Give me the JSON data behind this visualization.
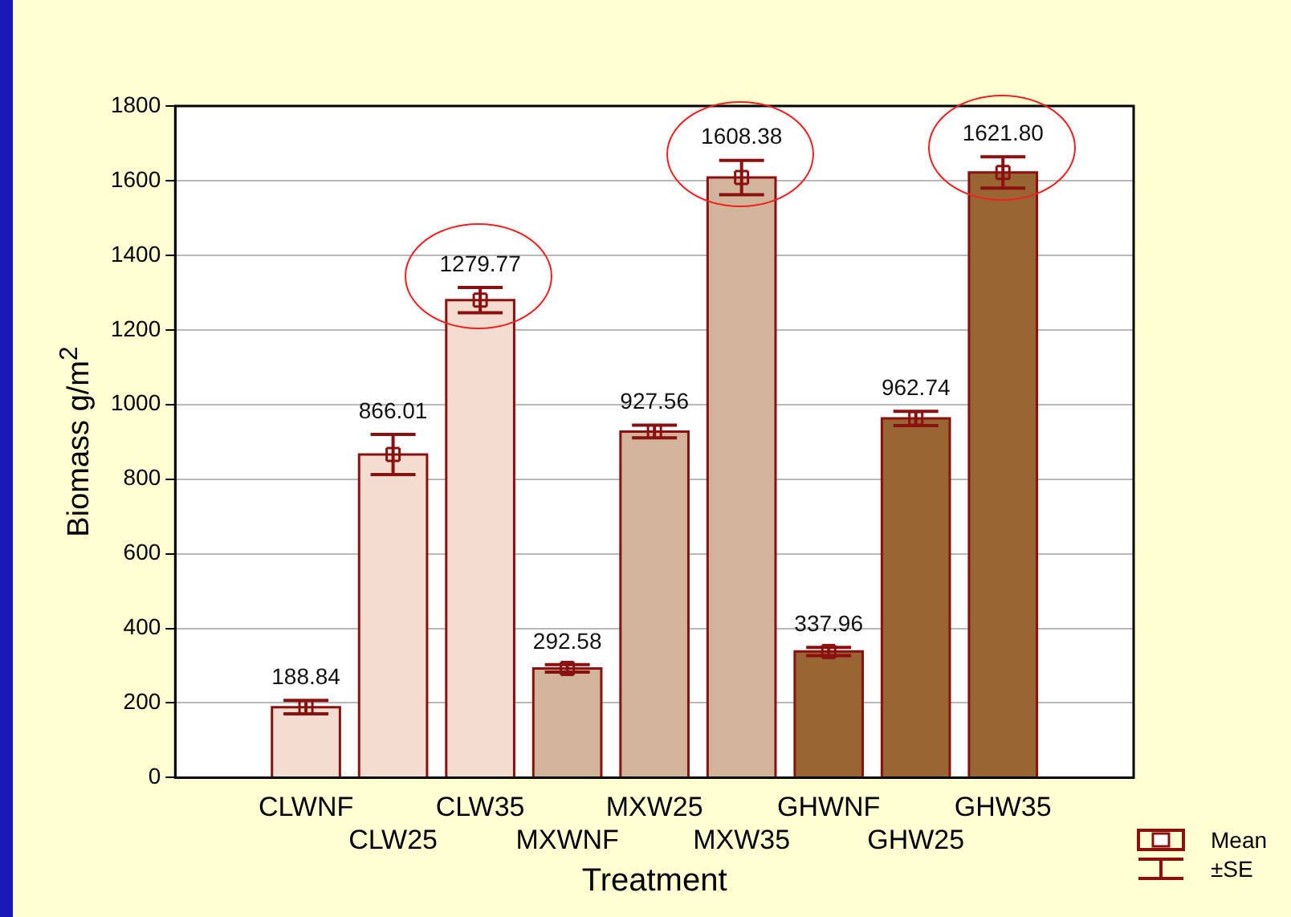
{
  "chart_data": {
    "type": "bar",
    "xlabel": "Treatment",
    "ylabel": "Biomass g/m$^{2}$",
    "categories": [
      null,
      "CLWNF",
      "CLW25",
      "CLW35",
      "MXWNF",
      "MXW25",
      "MXW35",
      "GHWNF",
      "GHW25",
      "GHW35",
      null
    ],
    "values": [
      null,
      188.84,
      866.01,
      1279.77,
      292.58,
      927.56,
      1608.38,
      337.96,
      962.74,
      1621.8,
      null
    ],
    "errors": [
      null,
      18,
      54,
      34,
      10,
      17,
      46,
      11,
      19,
      42,
      null
    ],
    "value_labels": [
      null,
      "188.84",
      "866.01",
      "1279.77",
      "292.58",
      "927.56",
      "1608.38",
      "337.96",
      "962.74",
      "1621.80",
      null
    ],
    "colors": [
      "#ffffff",
      "#f3ddd0",
      "#f3ddd0",
      "#f3ddd0",
      "#d2b49a",
      "#d2b49a",
      "#d2b49a",
      "#996633",
      "#996633",
      "#996633",
      "#ffffff"
    ],
    "ylim": [
      0,
      1800
    ],
    "yticks": [
      0,
      200,
      400,
      600,
      800,
      1000,
      1200,
      1400,
      1600,
      1800
    ],
    "grid": "y",
    "marker": "square",
    "annotations": [
      "Mean",
      "±SE"
    ]
  }
}
